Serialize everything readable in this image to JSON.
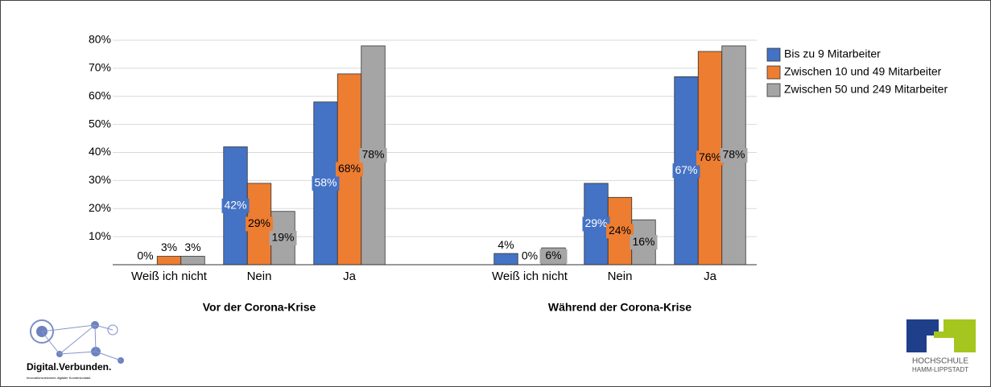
{
  "chart_data": {
    "type": "bar",
    "categories": [
      "Weiß ich nicht",
      "Nein",
      "Ja",
      "Weiß ich nicht",
      "Nein",
      "Ja"
    ],
    "groups": [
      "Vor der Corona-Krise",
      "Während der Corona-Krise"
    ],
    "series": [
      {
        "name": "Bis zu 9 Mitarbeiter",
        "color": "#4472c4",
        "values": [
          0,
          42,
          58,
          4,
          29,
          67
        ],
        "value_labels": [
          "0%",
          "42%",
          "58%",
          "4%",
          "29%",
          "67%"
        ]
      },
      {
        "name": "Zwischen 10 und 49 Mitarbeiter",
        "color": "#ed7d31",
        "values": [
          3,
          29,
          68,
          0,
          24,
          76
        ],
        "value_labels": [
          "3%",
          "29%",
          "68%",
          "0%",
          "24%",
          "76%"
        ]
      },
      {
        "name": "Zwischen 50 und 249 Mitarbeiter",
        "color": "#a5a5a5",
        "values": [
          3,
          19,
          78,
          6,
          16,
          78
        ],
        "value_labels": [
          "3%",
          "19%",
          "78%",
          "6%",
          "16%",
          "78%"
        ]
      }
    ],
    "ylim": [
      0,
      80
    ],
    "yticks": [
      {
        "value": 10,
        "label": "10%"
      },
      {
        "value": 20,
        "label": "20%"
      },
      {
        "value": 30,
        "label": "30%"
      },
      {
        "value": 40,
        "label": "40%"
      },
      {
        "value": 50,
        "label": "50%"
      },
      {
        "value": 60,
        "label": "60%"
      },
      {
        "value": 70,
        "label": "70%"
      },
      {
        "value": 80,
        "label": "80%"
      }
    ],
    "grid": true,
    "legend": "right"
  },
  "logos": {
    "left": {
      "name": "Digital.Verbunden.",
      "tagline": "Innovationsnetzwerk digitaler Kundenkontakt"
    },
    "right": {
      "line1": "HOCHSCHULE",
      "line2": "HAMM-LIPPSTADT"
    }
  }
}
